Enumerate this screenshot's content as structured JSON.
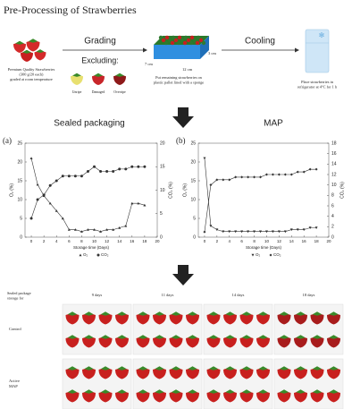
{
  "diagram": {
    "title": "Pre-Processing of Strawberries",
    "grading": "Grading",
    "excluding": "Excluding:",
    "cooling": "Cooling",
    "source_caption": [
      "Premium Quality Strawberries",
      "(300 g/20 each)",
      "graded at room temperature"
    ],
    "exclusions": [
      "Unripe",
      "Damaged",
      "Overripe"
    ],
    "pallet_caption": [
      "Put remaining strawberries on",
      "plastic pallet lined with a sponge"
    ],
    "dimensions": [
      "3 cm",
      "7 cm",
      "12 cm"
    ],
    "fridge_caption": [
      "Place strawberries in",
      "refrigerator at 4°C for 1 h"
    ]
  },
  "chart_data": [
    {
      "type": "line",
      "panel": "(a)",
      "heading": "Sealed packaging",
      "x_label": "Storage time (Days)",
      "y_label": "O₂ (%)",
      "y2_label": "CO₂ (%)",
      "x": [
        0,
        1,
        2,
        3,
        4,
        5,
        6,
        7,
        8,
        9,
        10,
        11,
        12,
        13,
        14,
        15,
        16,
        17,
        18
      ],
      "series": [
        {
          "name": "O₂",
          "color": "#333333",
          "marker": "triangle",
          "values": [
            21,
            14,
            11,
            9,
            7,
            5,
            2,
            2,
            1.5,
            2,
            2,
            1.5,
            2,
            2,
            2.5,
            3,
            9,
            9,
            8.5
          ]
        },
        {
          "name": "CO₂",
          "color": "#333333",
          "marker": "circle",
          "axis": "y2",
          "values": [
            4,
            8,
            9,
            11,
            12,
            13,
            13,
            13,
            13,
            14,
            15,
            14,
            14,
            14,
            14.5,
            14.5,
            15,
            15,
            15
          ]
        }
      ],
      "xlim": [
        -1,
        20
      ],
      "xticks": [
        0,
        2,
        4,
        6,
        8,
        10,
        12,
        14,
        16,
        18,
        20
      ],
      "ylim": [
        0,
        25
      ],
      "yticks": [
        0,
        5,
        10,
        15,
        20,
        25
      ],
      "y2lim": [
        0,
        20
      ],
      "y2ticks": [
        0,
        5,
        10,
        15,
        20
      ]
    },
    {
      "type": "line",
      "panel": "(b)",
      "heading": "MAP",
      "x_label": "Storage time (Days)",
      "y_label": "O₂ (%)",
      "y2_label": "CO₂ (%)",
      "x": [
        0,
        1,
        2,
        3,
        4,
        5,
        6,
        7,
        8,
        9,
        10,
        11,
        12,
        13,
        14,
        15,
        16,
        17,
        18
      ],
      "series": [
        {
          "name": "O₂",
          "color": "#333333",
          "marker": "down-triangle",
          "values": [
            21,
            3,
            2,
            1.5,
            1.5,
            1.5,
            1.5,
            1.5,
            1.5,
            1.5,
            1.5,
            1.5,
            1.5,
            1.5,
            2,
            2,
            2,
            2.5,
            2.5
          ]
        },
        {
          "name": "CO₂",
          "color": "#333333",
          "marker": "diamond",
          "axis": "y2",
          "values": [
            1,
            10,
            11,
            11,
            11,
            11.5,
            11.5,
            11.5,
            11.5,
            11.5,
            12,
            12,
            12,
            12,
            12,
            12.5,
            12.5,
            13,
            13
          ]
        }
      ],
      "xlim": [
        -1,
        20
      ],
      "xticks": [
        0,
        2,
        4,
        6,
        8,
        10,
        12,
        14,
        16,
        18,
        20
      ],
      "ylim": [
        0,
        25
      ],
      "yticks": [
        0,
        5,
        10,
        15,
        20,
        25
      ],
      "y2lim": [
        0,
        18
      ],
      "y2ticks": [
        0,
        2,
        4,
        6,
        8,
        10,
        12,
        14,
        16,
        18
      ]
    }
  ],
  "photos": {
    "heading": [
      "Sealed package",
      "storage for"
    ],
    "columns": [
      "9 days",
      "11 days",
      "14 days",
      "18 days"
    ],
    "rows": [
      [
        "Control"
      ],
      [
        "Active",
        "MAP"
      ]
    ]
  }
}
